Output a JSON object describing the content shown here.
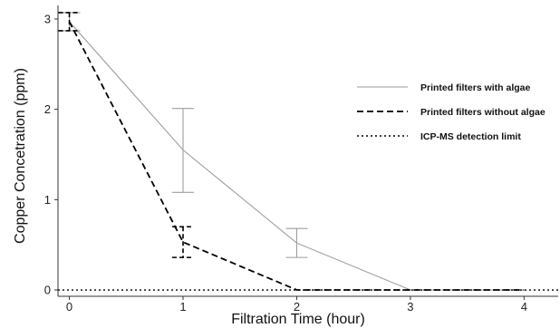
{
  "chart_data": {
    "type": "line",
    "xlabel": "Filtration Time (hour)",
    "ylabel": "Copper Concetration (ppm)",
    "x": [
      0,
      1,
      2,
      3,
      4
    ],
    "x_ticks": [
      "0",
      "1",
      "2",
      "3",
      "4"
    ],
    "y_ticks": [
      "0",
      "1",
      "2",
      "3"
    ],
    "xlim": [
      -0.1,
      4.3
    ],
    "ylim": [
      -0.07,
      3.15
    ],
    "grid": false,
    "legend_position": "right",
    "series": [
      {
        "name": "Printed filters with algae",
        "style": "solid",
        "color": "#9e9e9e",
        "values": [
          2.97,
          1.55,
          0.52,
          0.0,
          0.0
        ],
        "error_bars": [
          {
            "x": 0,
            "low": 2.87,
            "high": 3.07
          },
          {
            "x": 1,
            "low": 1.08,
            "high": 2.01
          },
          {
            "x": 2,
            "low": 0.36,
            "high": 0.68
          }
        ]
      },
      {
        "name": "Printed filters without algae",
        "style": "dashed",
        "color": "#000000",
        "values": [
          2.97,
          0.53,
          0.0,
          0.0,
          0.0
        ],
        "error_bars": [
          {
            "x": 0,
            "low": 2.87,
            "high": 3.07
          },
          {
            "x": 1,
            "low": 0.36,
            "high": 0.7
          }
        ]
      },
      {
        "name": "ICP-MS detection limit",
        "style": "dotted",
        "color": "#000000",
        "constant": 0.0
      }
    ]
  }
}
